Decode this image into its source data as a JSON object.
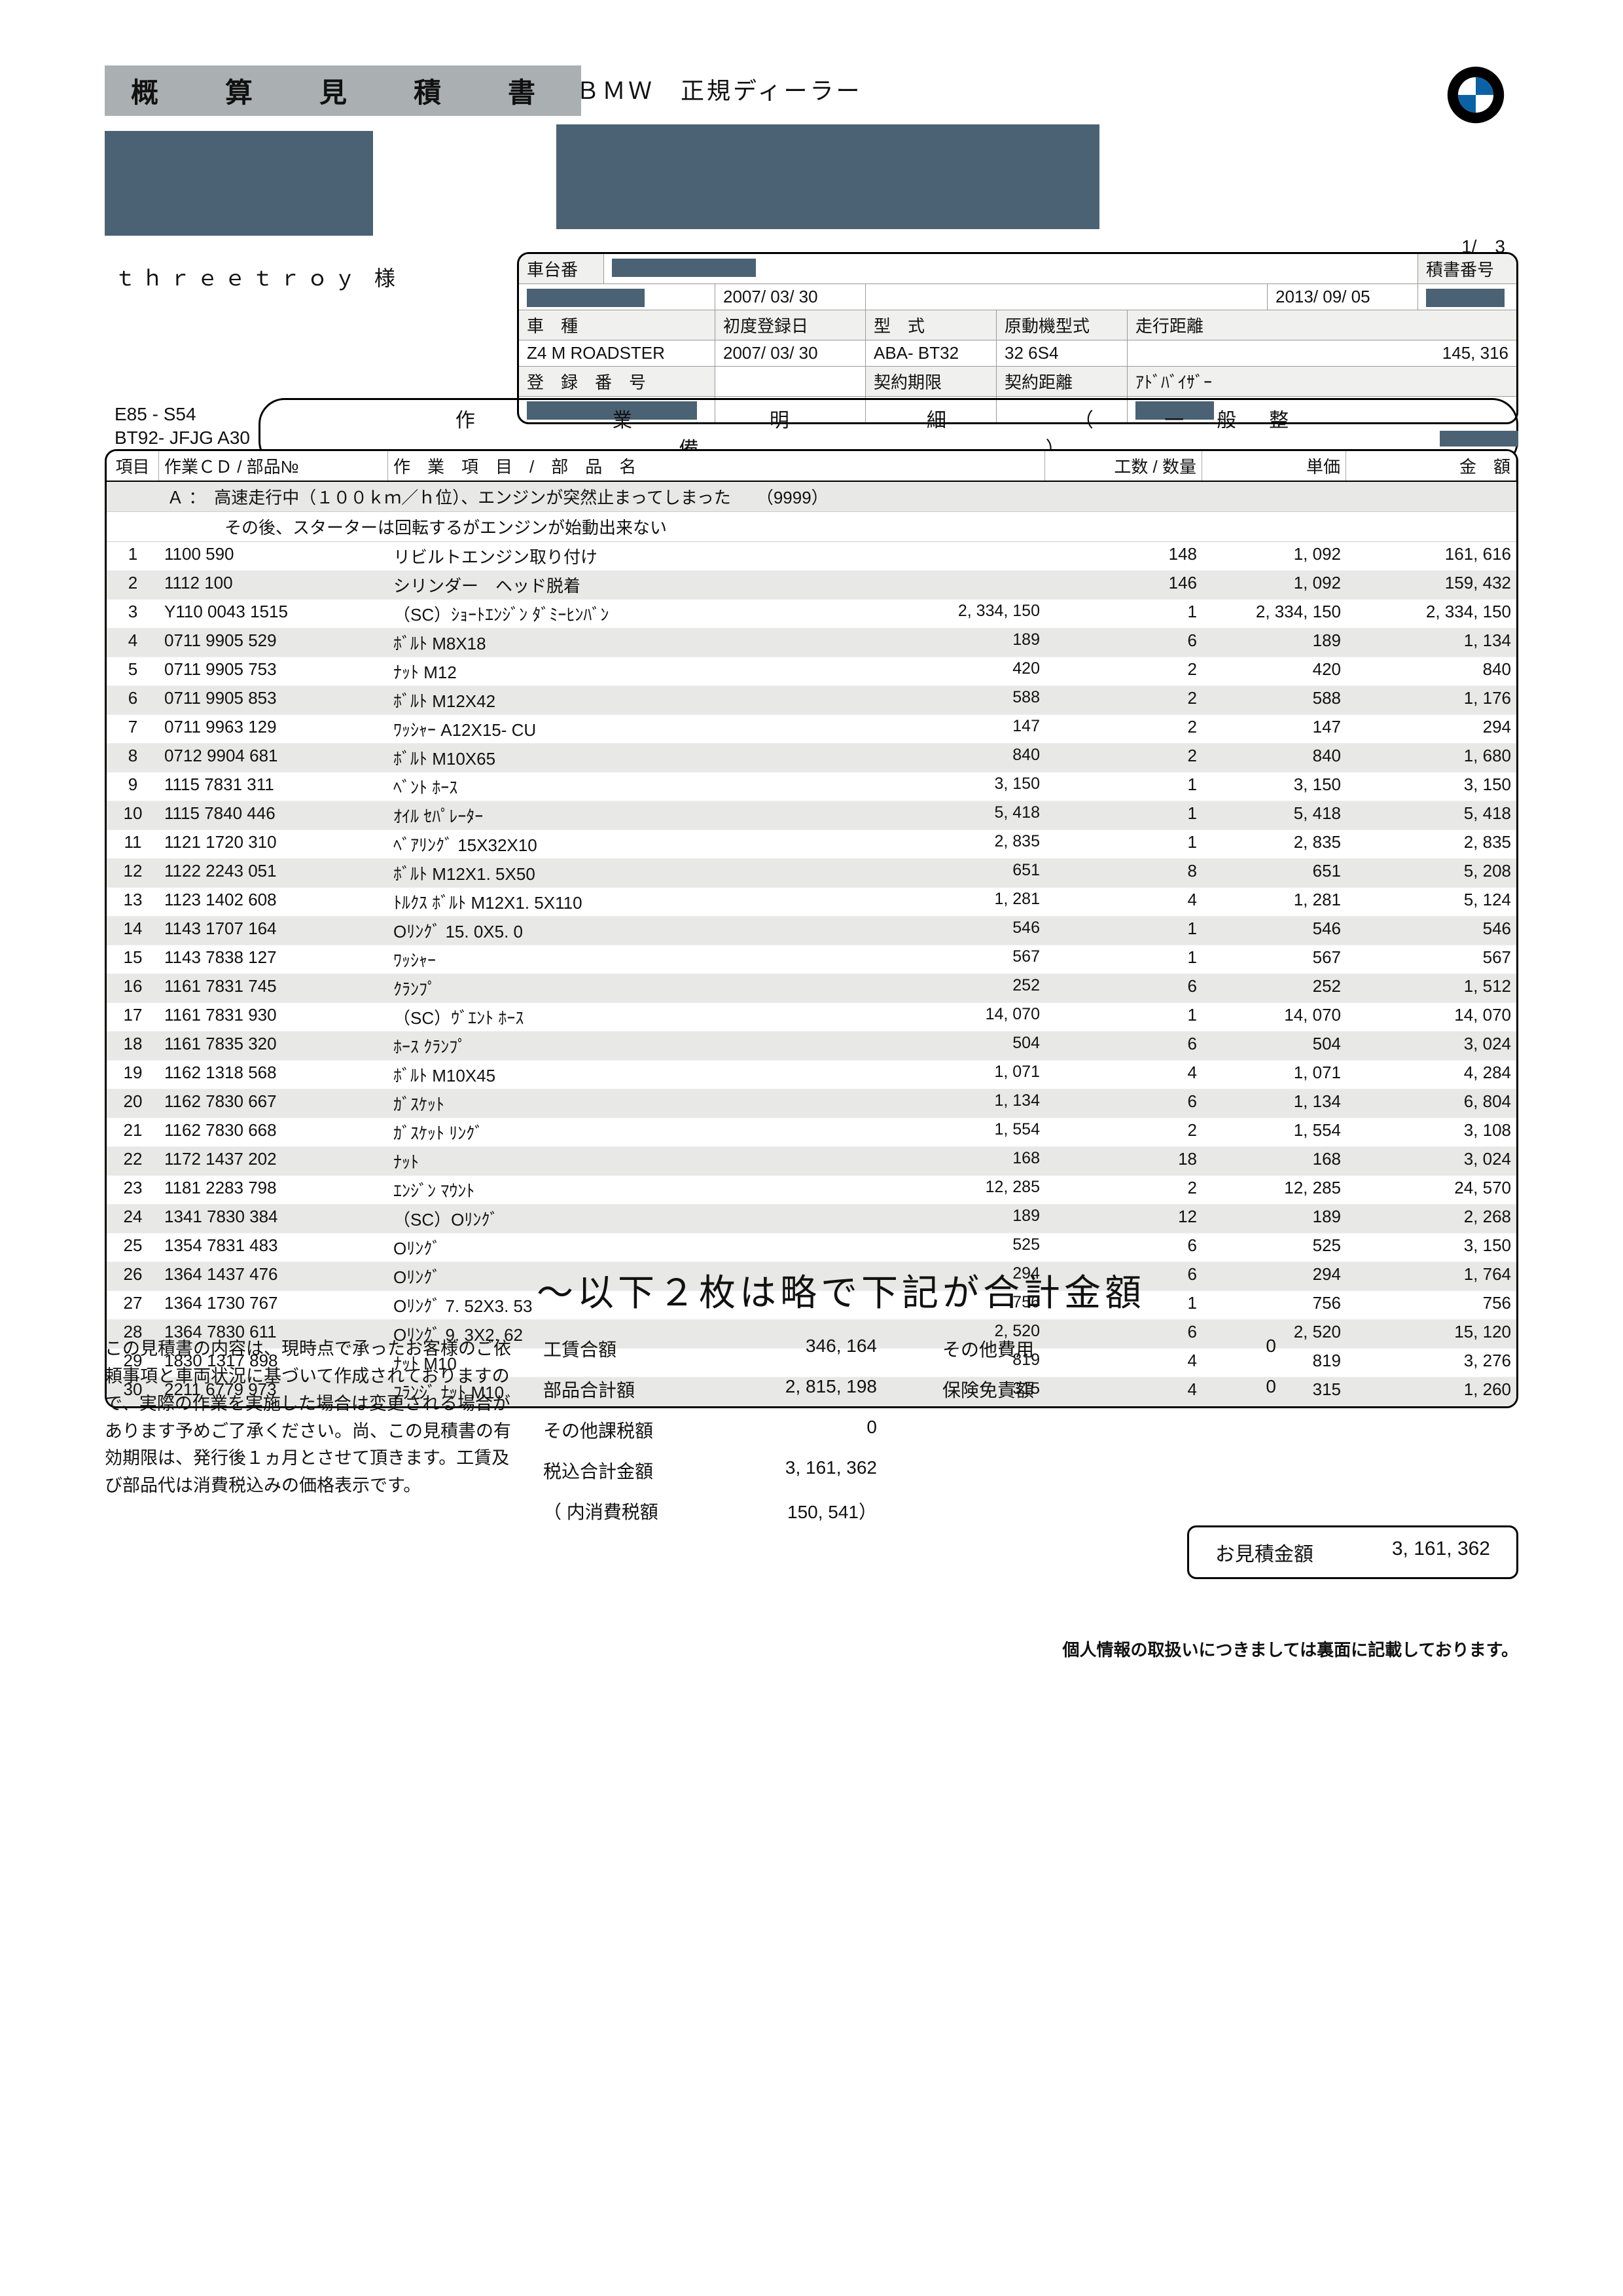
{
  "colors": {
    "title_bg": "#aab0b2",
    "redacted": "#4a6273",
    "row_alt": "#e8e9e7",
    "border": "#000000",
    "bmw_blue": "#0a62a5"
  },
  "title": "概　算　見　積　書",
  "dealer": "ＢＭＷ　正規ディーラー",
  "customer": "ｔｈｒｅｅｔｒｏｙ 様",
  "page": "1/　3",
  "meta": {
    "chassis_label": "車台番",
    "doc_no_label": "積書番号",
    "date1": "2007/ 03/ 30",
    "date2": "2013/ 09/ 05",
    "type_hdr": "車　種",
    "first_reg_hdr": "初度登録日",
    "model_hdr": "型　式",
    "engine_hdr": "原動機型式",
    "mileage_hdr": "走行距離",
    "type_val": "Z4 M ROADSTER",
    "first_reg_val": "2007/ 03/ 30",
    "model_val": "ABA- BT32",
    "engine_val": "32 6S4",
    "mileage_val": "145, 316",
    "reg_no_hdr": "登　録　番　号",
    "contract_period_hdr": "契約期限",
    "contract_dist_hdr": "契約距離",
    "advisor_hdr": "ｱﾄﾞﾊﾞｲｻﾞｰ"
  },
  "codes": {
    "line1": "E85 - S54",
    "line2": "BT92- JFJG A30"
  },
  "work_title": "作　　業　　明　　細　　（ 一般整備　　　　　　）",
  "headers": {
    "no": "項目",
    "code": "作業ＣＤ / 部品№",
    "name": "作　業　項　目　/　部　品　名",
    "qty": "工数 / 数量",
    "unit": "単価",
    "amt": "金　額"
  },
  "section": {
    "a": "Ａ ：　高速走行中（１００ｋｍ／ｈ位）、エンジンが突然止まってしまった　　（9999）",
    "a2": "その後、スターターは回転するがエンジンが始動出来ない"
  },
  "rows": [
    {
      "no": "1",
      "code": "1100 590",
      "name": "リビルトエンジン取り付け",
      "extra": "",
      "qty": "148",
      "unit": "1, 092",
      "amt": "161, 616"
    },
    {
      "no": "2",
      "code": "1112 100",
      "name": "シリンダー　ヘッド脱着",
      "extra": "",
      "qty": "146",
      "unit": "1, 092",
      "amt": "159, 432"
    },
    {
      "no": "3",
      "code": "Y110 0043 1515",
      "name": "（SC）ｼｮｰﾄｴﾝｼﾞﾝ ﾀﾞﾐｰﾋﾝﾊﾞﾝ",
      "extra": "2, 334, 150",
      "qty": "1",
      "unit": "2, 334, 150",
      "amt": "2, 334, 150"
    },
    {
      "no": "4",
      "code": "0711 9905 529",
      "name": "ﾎﾞﾙﾄ M8X18",
      "extra": "189",
      "qty": "6",
      "unit": "189",
      "amt": "1, 134"
    },
    {
      "no": "5",
      "code": "0711 9905 753",
      "name": "ﾅｯﾄ M12",
      "extra": "420",
      "qty": "2",
      "unit": "420",
      "amt": "840"
    },
    {
      "no": "6",
      "code": "0711 9905 853",
      "name": "ﾎﾞﾙﾄ M12X42",
      "extra": "588",
      "qty": "2",
      "unit": "588",
      "amt": "1, 176"
    },
    {
      "no": "7",
      "code": "0711 9963 129",
      "name": "ﾜｯｼｬｰ A12X15- CU",
      "extra": "147",
      "qty": "2",
      "unit": "147",
      "amt": "294"
    },
    {
      "no": "8",
      "code": "0712 9904 681",
      "name": "ﾎﾞﾙﾄ M10X65",
      "extra": "840",
      "qty": "2",
      "unit": "840",
      "amt": "1, 680"
    },
    {
      "no": "9",
      "code": "1115 7831 311",
      "name": "ﾍﾞﾝﾄ ﾎｰｽ",
      "extra": "3, 150",
      "qty": "1",
      "unit": "3, 150",
      "amt": "3, 150"
    },
    {
      "no": "10",
      "code": "1115 7840 446",
      "name": "ｵｲﾙ ｾﾊﾟﾚｰﾀｰ",
      "extra": "5, 418",
      "qty": "1",
      "unit": "5, 418",
      "amt": "5, 418"
    },
    {
      "no": "11",
      "code": "1121 1720 310",
      "name": "ﾍﾞｱﾘﾝｸﾞ 15X32X10",
      "extra": "2, 835",
      "qty": "1",
      "unit": "2, 835",
      "amt": "2, 835"
    },
    {
      "no": "12",
      "code": "1122 2243 051",
      "name": "ﾎﾞﾙﾄ M12X1. 5X50",
      "extra": "651",
      "qty": "8",
      "unit": "651",
      "amt": "5, 208"
    },
    {
      "no": "13",
      "code": "1123 1402 608",
      "name": "ﾄﾙｸｽ ﾎﾞﾙﾄ M12X1. 5X110",
      "extra": "1, 281",
      "qty": "4",
      "unit": "1, 281",
      "amt": "5, 124"
    },
    {
      "no": "14",
      "code": "1143 1707 164",
      "name": "Oﾘﾝｸﾞ 15. 0X5. 0",
      "extra": "546",
      "qty": "1",
      "unit": "546",
      "amt": "546"
    },
    {
      "no": "15",
      "code": "1143 7838 127",
      "name": "ﾜｯｼｬｰ",
      "extra": "567",
      "qty": "1",
      "unit": "567",
      "amt": "567"
    },
    {
      "no": "16",
      "code": "1161 7831 745",
      "name": "ｸﾗﾝﾌﾟ",
      "extra": "252",
      "qty": "6",
      "unit": "252",
      "amt": "1, 512"
    },
    {
      "no": "17",
      "code": "1161 7831 930",
      "name": "（SC）ｳﾞｴﾝﾄ ﾎｰｽ",
      "extra": "14, 070",
      "qty": "1",
      "unit": "14, 070",
      "amt": "14, 070"
    },
    {
      "no": "18",
      "code": "1161 7835 320",
      "name": "ﾎｰｽ ｸﾗﾝﾌﾟ",
      "extra": "504",
      "qty": "6",
      "unit": "504",
      "amt": "3, 024"
    },
    {
      "no": "19",
      "code": "1162 1318 568",
      "name": "ﾎﾞﾙﾄ M10X45",
      "extra": "1, 071",
      "qty": "4",
      "unit": "1, 071",
      "amt": "4, 284"
    },
    {
      "no": "20",
      "code": "1162 7830 667",
      "name": "ｶﾞｽｹｯﾄ",
      "extra": "1, 134",
      "qty": "6",
      "unit": "1, 134",
      "amt": "6, 804"
    },
    {
      "no": "21",
      "code": "1162 7830 668",
      "name": "ｶﾞｽｹｯﾄ ﾘﾝｸﾞ",
      "extra": "1, 554",
      "qty": "2",
      "unit": "1, 554",
      "amt": "3, 108"
    },
    {
      "no": "22",
      "code": "1172 1437 202",
      "name": "ﾅｯﾄ",
      "extra": "168",
      "qty": "18",
      "unit": "168",
      "amt": "3, 024"
    },
    {
      "no": "23",
      "code": "1181 2283 798",
      "name": "ｴﾝｼﾞﾝ ﾏｳﾝﾄ",
      "extra": "12, 285",
      "qty": "2",
      "unit": "12, 285",
      "amt": "24, 570"
    },
    {
      "no": "24",
      "code": "1341 7830 384",
      "name": "（SC）Oﾘﾝｸﾞ",
      "extra": "189",
      "qty": "12",
      "unit": "189",
      "amt": "2, 268"
    },
    {
      "no": "25",
      "code": "1354 7831 483",
      "name": "Oﾘﾝｸﾞ",
      "extra": "525",
      "qty": "6",
      "unit": "525",
      "amt": "3, 150"
    },
    {
      "no": "26",
      "code": "1364 1437 476",
      "name": "Oﾘﾝｸﾞ",
      "extra": "294",
      "qty": "6",
      "unit": "294",
      "amt": "1, 764"
    },
    {
      "no": "27",
      "code": "1364 1730 767",
      "name": "Oﾘﾝｸﾞ 7. 52X3. 53",
      "extra": "756",
      "qty": "1",
      "unit": "756",
      "amt": "756"
    },
    {
      "no": "28",
      "code": "1364 7830 611",
      "name": "Oﾘﾝｸﾞ 9. 3X2. 62",
      "extra": "2, 520",
      "qty": "6",
      "unit": "2, 520",
      "amt": "15, 120"
    },
    {
      "no": "29",
      "code": "1830 1317 898",
      "name": "ﾅｯﾄ M10",
      "extra": "819",
      "qty": "4",
      "unit": "819",
      "amt": "3, 276"
    },
    {
      "no": "30",
      "code": "2211 6779 973",
      "name": "ﾌﾗﾝｼﾞ ﾅｯﾄ M10",
      "extra": "315",
      "qty": "4",
      "unit": "315",
      "amt": "1, 260"
    }
  ],
  "handwritten": "～以下２枚は略で下記が合計金額",
  "note": "この見積書の内容は、現時点で承ったお客様のご依頼事項と車両状況に基づいて作成されておりますので、実際の作業を実施した場合は変更される場合があります予めご了承ください。尚、この見積書の有効期限は、発行後１ヵ月とさせて頂きます。工賃及び部品代は消費税込みの価格表示です。",
  "totals": {
    "labor_label": "工賃合額",
    "labor_val": "346, 164",
    "parts_label": "部品合計額",
    "parts_val": "2, 815, 198",
    "other_tax_label": "その他課税額",
    "other_tax_val": "0",
    "tax_incl_label": "税込合計金額",
    "tax_incl_val": "3, 161, 362",
    "inner_tax_label": "（ 内消費税額",
    "inner_tax_val": "150, 541）",
    "other_cost_label": "その他費用",
    "other_cost_val": "0",
    "insurance_label": "保険免責額",
    "insurance_val": "0",
    "quote_label": "お見積金額",
    "quote_val": "3, 161, 362"
  },
  "footer": "個人情報の取扱いにつきましては裏面に記載しております。"
}
